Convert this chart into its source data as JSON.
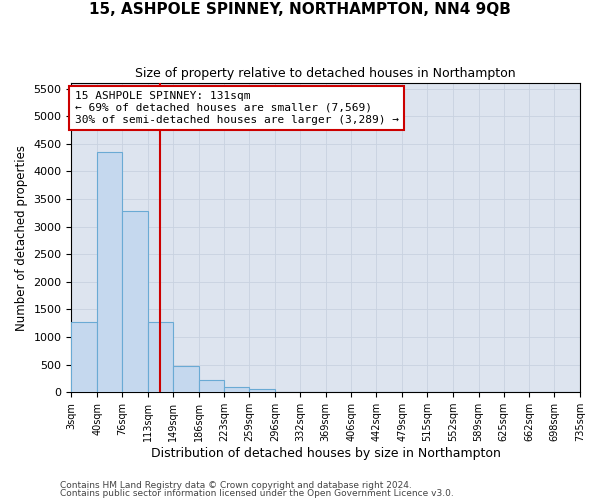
{
  "title": "15, ASHPOLE SPINNEY, NORTHAMPTON, NN4 9QB",
  "subtitle": "Size of property relative to detached houses in Northampton",
  "xlabel": "Distribution of detached houses by size in Northampton",
  "ylabel": "Number of detached properties",
  "footnote1": "Contains HM Land Registry data © Crown copyright and database right 2024.",
  "footnote2": "Contains public sector information licensed under the Open Government Licence v3.0.",
  "annotation_line1": "15 ASHPOLE SPINNEY: 131sqm",
  "annotation_line2": "← 69% of detached houses are smaller (7,569)",
  "annotation_line3": "30% of semi-detached houses are larger (3,289) →",
  "bar_left_edges": [
    3,
    40,
    76,
    113,
    149,
    186,
    223,
    259,
    296,
    332,
    369,
    406,
    442,
    479,
    515,
    552,
    589,
    625,
    662,
    698
  ],
  "bar_widths": [
    37,
    36,
    37,
    36,
    37,
    37,
    36,
    37,
    36,
    37,
    37,
    36,
    37,
    36,
    37,
    37,
    36,
    37,
    36,
    37
  ],
  "bar_heights": [
    1270,
    4350,
    3290,
    1265,
    480,
    220,
    100,
    60,
    0,
    0,
    0,
    0,
    0,
    0,
    0,
    0,
    0,
    0,
    0,
    0
  ],
  "bar_color": "#c5d8ee",
  "bar_edge_color": "#6aaad4",
  "bar_edge_width": 0.8,
  "grid_color": "#c8d2e0",
  "background_color": "#dde4ef",
  "property_line_x": 131,
  "property_line_color": "#cc0000",
  "annotation_box_color": "#cc0000",
  "ylim": [
    0,
    5600
  ],
  "yticks": [
    0,
    500,
    1000,
    1500,
    2000,
    2500,
    3000,
    3500,
    4000,
    4500,
    5000,
    5500
  ],
  "x_tick_labels": [
    "3sqm",
    "40sqm",
    "76sqm",
    "113sqm",
    "149sqm",
    "186sqm",
    "223sqm",
    "259sqm",
    "296sqm",
    "332sqm",
    "369sqm",
    "406sqm",
    "442sqm",
    "479sqm",
    "515sqm",
    "552sqm",
    "589sqm",
    "625sqm",
    "662sqm",
    "698sqm",
    "735sqm"
  ],
  "x_tick_positions": [
    3,
    40,
    76,
    113,
    149,
    186,
    223,
    259,
    296,
    332,
    369,
    406,
    442,
    479,
    515,
    552,
    589,
    625,
    662,
    698,
    735
  ],
  "xlim": [
    3,
    735
  ]
}
